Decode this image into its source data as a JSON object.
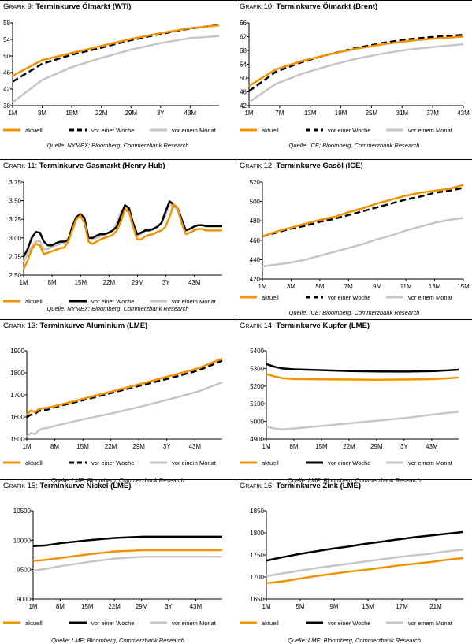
{
  "colors": {
    "current": "#F39200",
    "week": "#000000",
    "month": "#C6C6C6"
  },
  "charts": [
    {
      "chart_data": {
        "type": "line",
        "title_prefix": "Grafik 9:",
        "title": "Terminkurve Ölmarkt (WTI)",
        "source": "Quelle: NYMEX; Bloomberg, Commerzbank Research",
        "tick_labels": [
          "1M",
          "8M",
          "15M",
          "22M",
          "29M",
          "3Y",
          "43M"
        ],
        "yticks": [
          "38",
          "42",
          "46",
          "50",
          "54",
          "58"
        ],
        "ylim": [
          38,
          58
        ],
        "legend": [
          "aktuell",
          "vor einer Woche",
          "vor einem Monat"
        ],
        "x": [
          1,
          8,
          15,
          22,
          29,
          36,
          43,
          50
        ],
        "series": [
          {
            "name": "aktuell",
            "style": "current",
            "values": [
              45.2,
              49.0,
              50.7,
              52.4,
              54.1,
              55.5,
              56.7,
              57.4
            ]
          },
          {
            "name": "vor einer Woche",
            "style": "week",
            "values": [
              43.8,
              48.1,
              50.3,
              52.0,
              53.8,
              55.3,
              56.6,
              57.5
            ]
          },
          {
            "name": "vor einem Monat",
            "style": "month",
            "values": [
              38.8,
              44.2,
              47.3,
              49.5,
              51.5,
              53.1,
              54.3,
              54.8
            ]
          }
        ]
      }
    },
    {
      "chart_data": {
        "type": "line",
        "title_prefix": "Grafik 10:",
        "title": "Terminkurve Ölmarkt (Brent)",
        "source": "Quelle: ICE; Bloomberg, Commerzbank Research",
        "tick_labels": [
          "1M",
          "7M",
          "13M",
          "19M",
          "25M",
          "31M",
          "37M",
          "43M"
        ],
        "yticks": [
          "42",
          "46",
          "50",
          "54",
          "58",
          "62",
          "66"
        ],
        "ylim": [
          42,
          66
        ],
        "legend": [
          "aktuell",
          "vor einer Woche",
          "vor einem Monat"
        ],
        "x": [
          1,
          7,
          13,
          19,
          25,
          31,
          37,
          43,
          49
        ],
        "series": [
          {
            "name": "aktuell",
            "style": "current",
            "values": [
              47.7,
              52.5,
              55.0,
              56.9,
              58.5,
              59.8,
              60.8,
              61.5,
              62.0
            ]
          },
          {
            "name": "vor einer Woche",
            "style": "week",
            "values": [
              46.2,
              51.8,
              54.7,
              56.9,
              58.7,
              60.2,
              61.3,
              62.0,
              62.5
            ]
          },
          {
            "name": "vor einem Monat",
            "style": "month",
            "values": [
              43.0,
              48.3,
              51.3,
              53.6,
              55.6,
              57.1,
              58.3,
              59.1,
              59.8
            ]
          }
        ]
      }
    },
    {
      "chart_data": {
        "type": "line",
        "title_prefix": "Grafik 11:",
        "title": "Terminkurve Gasmarkt (Henry Hub)",
        "source": "Quelle: NYMEX; Bloomberg, Commerzbank Research",
        "tick_labels": [
          "1M",
          "8M",
          "15M",
          "22M",
          "29M",
          "3Y",
          "43M"
        ],
        "yticks": [
          "2.50",
          "2.75",
          "3.00",
          "3.25",
          "3.50",
          "3.75"
        ],
        "ylim": [
          2.5,
          3.75
        ],
        "legend": [
          "aktuell",
          "vor einer Woche",
          "vor einem Monat"
        ],
        "x": [
          1,
          2,
          3,
          4,
          5,
          6,
          7,
          8,
          9,
          10,
          11,
          12,
          13,
          14,
          15,
          16,
          17,
          18,
          19,
          20,
          21,
          22,
          23,
          24,
          25,
          26,
          27,
          28,
          29,
          30,
          31,
          32,
          33,
          34,
          35,
          36,
          37,
          38,
          39,
          40,
          41,
          42,
          43,
          44,
          45,
          46,
          47,
          48,
          49,
          50
        ],
        "series": [
          {
            "name": "aktuell",
            "style": "current",
            "values": [
              2.58,
              2.7,
              2.85,
              2.92,
              2.9,
              2.78,
              2.8,
              2.82,
              2.84,
              2.86,
              2.87,
              2.95,
              3.1,
              3.25,
              3.3,
              3.2,
              2.95,
              2.92,
              2.95,
              2.98,
              3.0,
              3.02,
              3.04,
              3.1,
              3.22,
              3.38,
              3.35,
              3.15,
              2.98,
              2.98,
              3.02,
              3.04,
              3.05,
              3.08,
              3.1,
              3.15,
              3.28,
              3.45,
              3.4,
              3.2,
              3.05,
              3.07,
              3.1,
              3.12,
              3.12,
              3.1,
              3.1,
              3.1,
              3.1,
              3.1
            ]
          },
          {
            "name": "vor einer Woche",
            "style": "week",
            "values": [
              2.75,
              2.85,
              3.0,
              3.08,
              3.07,
              2.95,
              2.9,
              2.9,
              2.93,
              2.95,
              2.95,
              2.97,
              3.15,
              3.28,
              3.32,
              3.27,
              3.0,
              3.0,
              3.03,
              3.05,
              3.05,
              3.07,
              3.1,
              3.15,
              3.3,
              3.44,
              3.4,
              3.2,
              3.05,
              3.07,
              3.1,
              3.1,
              3.12,
              3.15,
              3.2,
              3.35,
              3.49,
              3.45,
              3.4,
              3.25,
              3.1,
              3.12,
              3.15,
              3.17,
              3.17,
              3.16,
              3.16,
              3.16,
              3.16,
              3.16
            ]
          },
          {
            "name": "vor einem Monat",
            "style": "month",
            "values": [
              2.67,
              2.8,
              2.88,
              2.95,
              2.96,
              2.85,
              2.85,
              2.88,
              2.9,
              2.92,
              2.93,
              3.0,
              3.12,
              3.28,
              3.28,
              3.25,
              3.0,
              2.98,
              3.0,
              3.02,
              3.05,
              3.07,
              3.1,
              3.2,
              3.35,
              3.4,
              3.38,
              3.2,
              3.02,
              3.05,
              3.1,
              3.12,
              3.12,
              3.15,
              3.2,
              3.3,
              3.45,
              3.42,
              3.38,
              3.2,
              3.1,
              3.12,
              3.15,
              3.17,
              3.17,
              3.15,
              3.15,
              3.15,
              3.15,
              3.15
            ]
          }
        ]
      }
    },
    {
      "chart_data": {
        "type": "line",
        "title_prefix": "Grafik 12:",
        "title": "Terminkurve Gasöl (ICE)",
        "source": "Quelle: ICE; Bloomberg, Commerzbank Research",
        "tick_labels": [
          "1M",
          "3M",
          "5M",
          "7M",
          "9M",
          "11M",
          "13M",
          "15M"
        ],
        "yticks": [
          "420",
          "440",
          "460",
          "480",
          "500",
          "520"
        ],
        "ylim": [
          420,
          520
        ],
        "legend": [
          "aktuell",
          "vor einer Woche",
          "vor einem Monat"
        ],
        "x": [
          1,
          2,
          3,
          4,
          5,
          6,
          7,
          8,
          9,
          10,
          11,
          12,
          13,
          14,
          15
        ],
        "series": [
          {
            "name": "aktuell",
            "style": "current",
            "values": [
              464,
              469,
              473,
              477,
              481,
              484,
              489,
              493,
              498,
              502,
              506,
              509,
              511,
              513,
              517
            ]
          },
          {
            "name": "vor einer Woche",
            "style": "week",
            "values": [
              464,
              468,
              472,
              475,
              479,
              482,
              486,
              490,
              494,
              498,
              502,
              505,
              509,
              511,
              514
            ]
          },
          {
            "name": "vor einem Monat",
            "style": "month",
            "values": [
              433,
              435,
              437,
              440,
              444,
              448,
              452,
              456,
              461,
              465,
              470,
              474,
              478,
              481,
              483
            ]
          }
        ]
      }
    },
    {
      "chart_data": {
        "type": "line",
        "title_prefix": "Grafik 13:",
        "title": "Terminkurve Aluminium (LME)",
        "source": "Quelle: LME; Bloomberg, Commerzbank Research",
        "tick_labels": [
          "1M",
          "8M",
          "15M",
          "22M",
          "29M",
          "3Y",
          "43M"
        ],
        "yticks": [
          "1500",
          "1600",
          "1700",
          "1800",
          "1900"
        ],
        "ylim": [
          1500,
          1900
        ],
        "legend": [
          "aktuell",
          "vor einer Woche",
          "vor einem Monat"
        ],
        "x": [
          1,
          2,
          3,
          4,
          5,
          6,
          8,
          15,
          22,
          29,
          36,
          43,
          49
        ],
        "series": [
          {
            "name": "aktuell",
            "style": "current",
            "values": [
              1610,
              1630,
              1622,
              1636,
              1640,
              1641,
              1650,
              1683,
              1716,
              1750,
              1785,
              1820,
              1865
            ]
          },
          {
            "name": "vor einer Woche",
            "style": "week",
            "values": [
              1600,
              1610,
              1615,
              1628,
              1630,
              1633,
              1645,
              1677,
              1710,
              1743,
              1775,
              1810,
              1855
            ]
          },
          {
            "name": "vor einem Monat",
            "style": "month",
            "values": [
              1512,
              1528,
              1522,
              1540,
              1548,
              1550,
              1560,
              1590,
              1617,
              1647,
              1680,
              1715,
              1757
            ]
          }
        ]
      }
    },
    {
      "chart_data": {
        "type": "line",
        "title_prefix": "Grafik 14:",
        "title": "Terminkurve Kupfer (LME)",
        "source": "Quelle: LME; Bloomberg, Commerzbank Research",
        "tick_labels": [
          "1M",
          "8M",
          "15M",
          "22M",
          "29M",
          "3Y",
          "43M"
        ],
        "yticks": [
          "4900",
          "5000",
          "5100",
          "5200",
          "5300",
          "5400"
        ],
        "ylim": [
          4900,
          5400
        ],
        "legend": [
          "aktuell",
          "vor einer Woche",
          "vor einem Monat"
        ],
        "x": [
          1,
          3,
          5,
          8,
          15,
          22,
          29,
          36,
          43,
          49
        ],
        "series": [
          {
            "name": "aktuell",
            "style": "current",
            "values": [
              5268,
              5255,
              5245,
              5240,
              5238,
              5237,
              5236,
              5237,
              5240,
              5248
            ]
          },
          {
            "name": "vor einer Woche",
            "style": "week",
            "values": [
              5325,
              5310,
              5300,
              5295,
              5290,
              5285,
              5283,
              5282,
              5285,
              5293
            ]
          },
          {
            "name": "vor einem Monat",
            "style": "month",
            "values": [
              4970,
              4960,
              4955,
              4960,
              4975,
              4990,
              5005,
              5020,
              5040,
              5055
            ]
          }
        ]
      }
    },
    {
      "chart_data": {
        "type": "line",
        "title_prefix": "Grafik 15:",
        "title": "Terminkurve Nickel (LME)",
        "source": "Quelle: LME; Bloomberg, Commerzbank Research",
        "tick_labels": [
          "1M",
          "8M",
          "15M",
          "22M",
          "29M",
          "3Y",
          "43M"
        ],
        "yticks": [
          "9000",
          "9500",
          "10000",
          "10500"
        ],
        "ylim": [
          9000,
          10500
        ],
        "legend": [
          "aktuell",
          "vor einer Woche",
          "vor einem Monat"
        ],
        "x": [
          1,
          4,
          8,
          15,
          22,
          29,
          36,
          43,
          49
        ],
        "series": [
          {
            "name": "aktuell",
            "style": "current",
            "values": [
              9650,
              9665,
              9700,
              9760,
              9810,
              9830,
              9830,
              9830,
              9830
            ]
          },
          {
            "name": "vor einer Woche",
            "style": "week",
            "values": [
              9900,
              9910,
              9950,
              10000,
              10040,
              10060,
              10060,
              10060,
              10060
            ]
          },
          {
            "name": "vor einem Monat",
            "style": "month",
            "values": [
              9480,
              9510,
              9560,
              9630,
              9690,
              9720,
              9720,
              9720,
              9720
            ]
          }
        ]
      }
    },
    {
      "chart_data": {
        "type": "line",
        "title_prefix": "Grafik 16:",
        "title": "Terminkurve Zink (LME)",
        "source": "Quelle: LME; Bloomberg, Commerzbank Research",
        "tick_labels": [
          "1M",
          "5M",
          "9M",
          "13M",
          "17M",
          "21M"
        ],
        "yticks": [
          "1650",
          "1700",
          "1750",
          "1800",
          "1850"
        ],
        "ylim": [
          1650,
          1850
        ],
        "legend": [
          "aktuell",
          "vor einer Woche",
          "vor einem Monat"
        ],
        "x": [
          1,
          3,
          5,
          7,
          9,
          11,
          13,
          15,
          17,
          19,
          21,
          23,
          25
        ],
        "series": [
          {
            "name": "aktuell",
            "style": "current",
            "values": [
              1686,
              1690,
              1696,
              1702,
              1707,
              1712,
              1716,
              1721,
              1726,
              1730,
              1734,
              1739,
              1743
            ]
          },
          {
            "name": "vor einer Woche",
            "style": "week",
            "values": [
              1737,
              1745,
              1752,
              1758,
              1764,
              1769,
              1775,
              1780,
              1785,
              1790,
              1794,
              1798,
              1802
            ]
          },
          {
            "name": "vor einem Monat",
            "style": "month",
            "values": [
              1702,
              1708,
              1714,
              1720,
              1725,
              1730,
              1735,
              1740,
              1745,
              1749,
              1753,
              1758,
              1762
            ]
          }
        ]
      }
    }
  ]
}
